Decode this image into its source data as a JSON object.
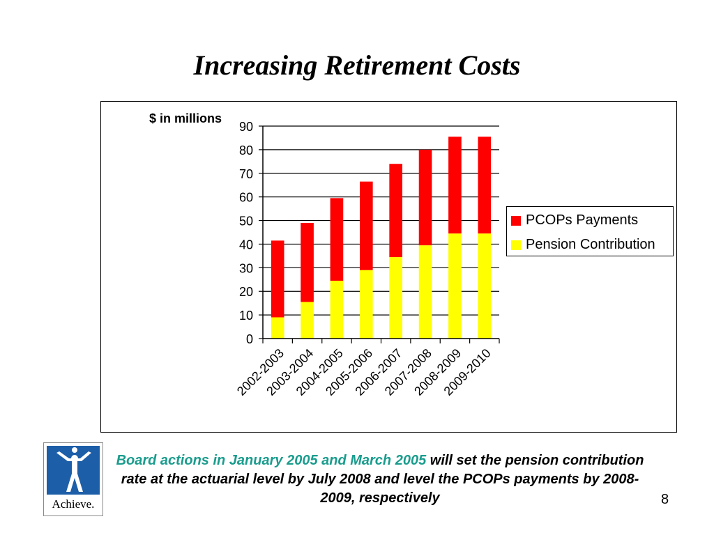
{
  "slide": {
    "title": "Increasing Retirement Costs",
    "page_number": "8",
    "logo_text": "Achieve.",
    "note_highlight": "Board actions in January 2005  and March 2005",
    "note_rest": " will set the pension contribution rate at the actuarial level by July 2008 and level the PCOPs payments by 2008-2009, respectively"
  },
  "colors": {
    "pension": "#ffff00",
    "pcops": "#ff0000",
    "highlight_text": "#1a9c8d",
    "logo_blue": "#1d5ea8"
  },
  "chart_data": {
    "type": "bar",
    "stacked": true,
    "title": "",
    "ylabel": "$ in millions",
    "xlabel": "",
    "ylim": [
      0,
      90
    ],
    "yticks": [
      0,
      10,
      20,
      30,
      40,
      50,
      60,
      70,
      80,
      90
    ],
    "grid": true,
    "legend_position": "right",
    "categories": [
      "2002-2003",
      "2003-2004",
      "2004-2005",
      "2005-2006",
      "2006-2007",
      "2007-2008",
      "2008-2009",
      "2009-2010"
    ],
    "series": [
      {
        "name": "Pension Contribution",
        "values": [
          9,
          15.5,
          24.5,
          29,
          34.5,
          39.5,
          44.5,
          44.5
        ]
      },
      {
        "name": "PCOPs Payments",
        "values": [
          32.5,
          33.5,
          35,
          37.5,
          39.5,
          40.5,
          41,
          41
        ]
      }
    ]
  }
}
